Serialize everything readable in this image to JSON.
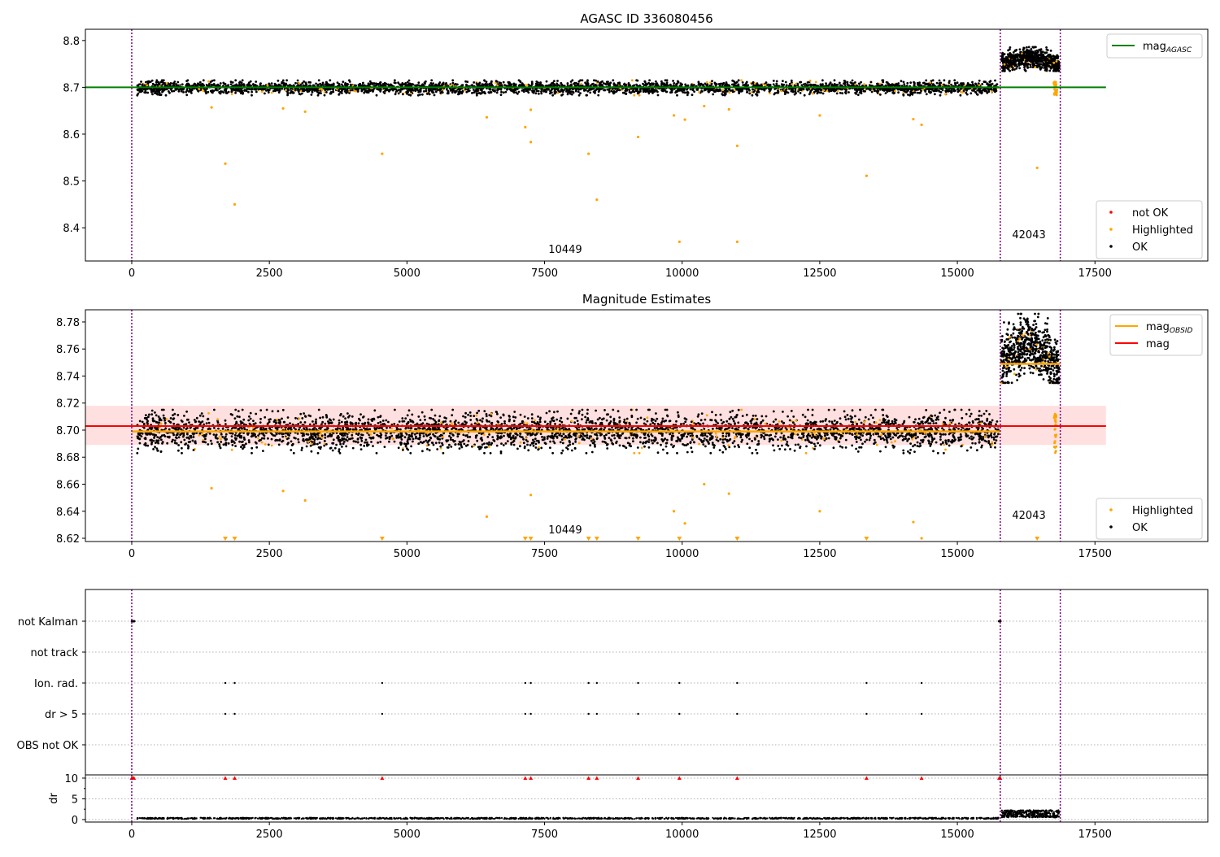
{
  "chart_data": {
    "type": "scatter",
    "x_range": [
      -842,
      19550
    ],
    "x_ticks": [
      0,
      2500,
      5000,
      7500,
      10000,
      12500,
      15000,
      17500
    ],
    "obs_boundaries": [
      0,
      15780,
      16870
    ],
    "obs_labels": [
      {
        "text": "10449",
        "x": 7876
      },
      {
        "text": "42043",
        "x": 16300
      }
    ],
    "outliers": [
      [
        1450,
        8.657
      ],
      [
        1700,
        8.537
      ],
      [
        1870,
        8.45
      ],
      [
        2750,
        8.655
      ],
      [
        3150,
        8.648
      ],
      [
        4550,
        8.558
      ],
      [
        6450,
        8.636
      ],
      [
        7150,
        8.615
      ],
      [
        7250,
        8.583
      ],
      [
        7250,
        8.652
      ],
      [
        8300,
        8.558
      ],
      [
        8450,
        8.46
      ],
      [
        9200,
        8.594
      ],
      [
        9850,
        8.64
      ],
      [
        9950,
        8.37
      ],
      [
        10050,
        8.631
      ],
      [
        10400,
        8.66
      ],
      [
        10850,
        8.653
      ],
      [
        11000,
        8.575
      ],
      [
        11000,
        8.37
      ],
      [
        12500,
        8.64
      ],
      [
        13350,
        8.511
      ],
      [
        14200,
        8.632
      ],
      [
        14350,
        8.62
      ],
      [
        16450,
        8.528
      ]
    ],
    "bulk": [
      {
        "x_range": [
          100,
          15750
        ],
        "mean": 8.699,
        "sd": 0.0065,
        "count": 3500
      },
      {
        "x_range": [
          15800,
          16850
        ],
        "mean": 8.751,
        "sd": 0.01,
        "count": 700
      }
    ],
    "panels": [
      {
        "title": "AGASC ID 336080456",
        "ylim": [
          8.329,
          8.824
        ],
        "y_ticks": [
          "8.4",
          "8.5",
          "8.6",
          "8.7",
          "8.8"
        ],
        "y_tick_values": [
          8.4,
          8.5,
          8.6,
          8.7,
          8.8
        ],
        "mag_agasc": 8.7,
        "legend_top": [
          {
            "label": "mag",
            "sub": "AGASC",
            "color": "#008000"
          }
        ],
        "legend_bottom": [
          {
            "label": "not OK",
            "color": "#ff0000"
          },
          {
            "label": "Highlighted",
            "color": "#ffa500"
          },
          {
            "label": "OK",
            "color": "#000000"
          }
        ]
      },
      {
        "title": "Magnitude Estimates",
        "ylim": [
          8.6176,
          8.789
        ],
        "y_ticks": [
          "8.62",
          "8.64",
          "8.66",
          "8.68",
          "8.70",
          "8.72",
          "8.74",
          "8.76",
          "8.78"
        ],
        "y_tick_values": [
          8.62,
          8.64,
          8.66,
          8.68,
          8.7,
          8.72,
          8.74,
          8.76,
          8.78
        ],
        "mag": 8.703,
        "mag_band": [
          8.689,
          8.718
        ],
        "mag_obsid": [
          {
            "x": [
              0,
              15780
            ],
            "y": 8.699
          },
          {
            "x": [
              15780,
              16870
            ],
            "y": 8.749
          }
        ],
        "legend_top": [
          {
            "label": "mag",
            "sub": "OBSID",
            "color": "#ffa500"
          },
          {
            "label": "mag",
            "sub": "",
            "color": "#ff0000"
          }
        ],
        "legend_bottom": [
          {
            "label": "Highlighted",
            "color": "#ffa500"
          },
          {
            "label": "OK",
            "color": "#000000"
          }
        ]
      }
    ],
    "flags": {
      "categories": [
        "not Kalman",
        "not track",
        "Ion. rad.",
        "dr > 5",
        "OBS not OK"
      ],
      "flag_x": [
        1700,
        1870,
        4550,
        7150,
        7250,
        8300,
        8450,
        9200,
        9950,
        11000,
        13350,
        14350
      ]
    },
    "dr": {
      "ylabel": "dr",
      "ylim": [
        -0.6,
        10.78
      ],
      "y_ticks": [
        "0",
        "5",
        "10"
      ],
      "y_tick_values": [
        0,
        5,
        10
      ]
    }
  }
}
